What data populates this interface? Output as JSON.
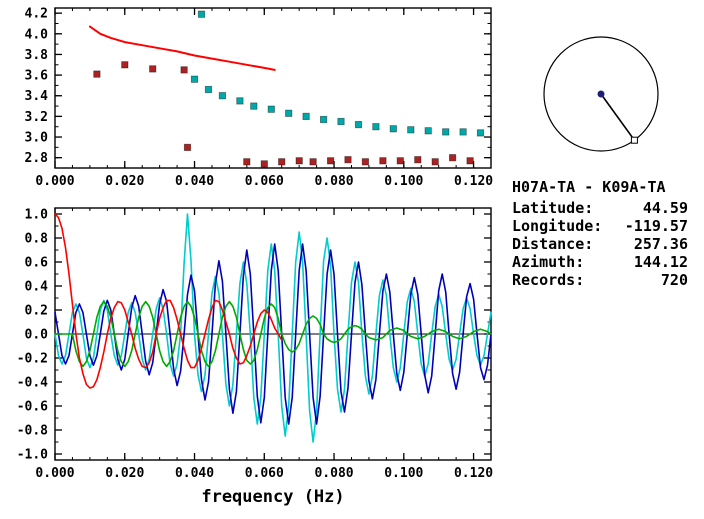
{
  "colors": {
    "background": "#ffffff",
    "frame": "#000000",
    "reference_red": "#ff0000",
    "marker_teal": "#00a8a8",
    "marker_dark_red": "#aa2222",
    "trace_blue": "#0000bb",
    "trace_cyan": "#00cccc",
    "trace_green": "#00aa00",
    "trace_red": "#ff0000",
    "center_dot_navy": "#202070",
    "text": "#000000"
  },
  "station_info": {
    "title": "H07A-TA - K09A-TA",
    "rows": [
      {
        "label": "Latitude:",
        "value": "44.59"
      },
      {
        "label": "Longitude:",
        "value": "-119.57"
      },
      {
        "label": "Distance:",
        "value": "257.36"
      },
      {
        "label": "Azimuth:",
        "value": "144.12"
      },
      {
        "label": "Records:",
        "value": "720"
      }
    ]
  },
  "azimuth_indicator": {
    "azimuth_deg": 144.12
  },
  "chart_data": [
    {
      "id": "dispersion",
      "type": "scatter",
      "title": "",
      "xlabel": "",
      "ylabel": "",
      "xlim": [
        0,
        0.125
      ],
      "ylim": [
        2.7,
        4.25
      ],
      "xticks": [
        0,
        0.02,
        0.04,
        0.06,
        0.08,
        0.1,
        0.12
      ],
      "xtick_labels": [
        "0.000",
        "0.020",
        "0.040",
        "0.060",
        "0.080",
        "0.100",
        "0.120"
      ],
      "yticks": [
        2.8,
        3.0,
        3.2,
        3.4,
        3.6,
        3.8,
        4.0,
        4.2
      ],
      "ytick_labels": [
        "2.8",
        "3.0",
        "3.2",
        "3.4",
        "3.6",
        "3.8",
        "4.0",
        "4.2"
      ],
      "grid": false,
      "legend": "none",
      "series": [
        {
          "name": "reference-dispersion-curve",
          "type": "line",
          "color": "#ff0000",
          "width": 2,
          "points": [
            [
              0.01,
              4.07
            ],
            [
              0.013,
              4.0
            ],
            [
              0.016,
              3.96
            ],
            [
              0.02,
              3.92
            ],
            [
              0.025,
              3.89
            ],
            [
              0.03,
              3.86
            ],
            [
              0.035,
              3.83
            ],
            [
              0.04,
              3.79
            ],
            [
              0.045,
              3.76
            ],
            [
              0.05,
              3.73
            ],
            [
              0.055,
              3.7
            ],
            [
              0.06,
              3.67
            ],
            [
              0.063,
              3.65
            ]
          ]
        },
        {
          "name": "group-velocity-picks",
          "type": "scatter",
          "marker": "square",
          "color": "#00a8a8",
          "points": [
            [
              0.042,
              4.19
            ],
            [
              0.04,
              3.56
            ],
            [
              0.044,
              3.46
            ],
            [
              0.048,
              3.4
            ],
            [
              0.053,
              3.35
            ],
            [
              0.057,
              3.3
            ],
            [
              0.062,
              3.27
            ],
            [
              0.067,
              3.23
            ],
            [
              0.072,
              3.2
            ],
            [
              0.077,
              3.17
            ],
            [
              0.082,
              3.15
            ],
            [
              0.087,
              3.12
            ],
            [
              0.092,
              3.1
            ],
            [
              0.097,
              3.08
            ],
            [
              0.102,
              3.07
            ],
            [
              0.107,
              3.06
            ],
            [
              0.112,
              3.05
            ],
            [
              0.117,
              3.05
            ],
            [
              0.122,
              3.04
            ]
          ]
        },
        {
          "name": "secondary-picks",
          "type": "scatter",
          "marker": "square",
          "color": "#aa2222",
          "points": [
            [
              0.012,
              3.61
            ],
            [
              0.02,
              3.7
            ],
            [
              0.028,
              3.66
            ],
            [
              0.037,
              3.65
            ],
            [
              0.038,
              2.9
            ],
            [
              0.055,
              2.76
            ],
            [
              0.06,
              2.74
            ],
            [
              0.065,
              2.76
            ],
            [
              0.07,
              2.77
            ],
            [
              0.074,
              2.76
            ],
            [
              0.079,
              2.77
            ],
            [
              0.084,
              2.78
            ],
            [
              0.089,
              2.76
            ],
            [
              0.094,
              2.77
            ],
            [
              0.099,
              2.77
            ],
            [
              0.104,
              2.78
            ],
            [
              0.109,
              2.76
            ],
            [
              0.114,
              2.8
            ],
            [
              0.119,
              2.77
            ]
          ]
        }
      ]
    },
    {
      "id": "waveforms",
      "type": "line",
      "title": "",
      "xlabel": "frequency (Hz)",
      "ylabel": "",
      "xlim": [
        0,
        0.125
      ],
      "ylim": [
        -1.05,
        1.05
      ],
      "xticks": [
        0,
        0.02,
        0.04,
        0.06,
        0.08,
        0.1,
        0.12
      ],
      "xtick_labels": [
        "0.000",
        "0.020",
        "0.040",
        "0.060",
        "0.080",
        "0.100",
        "0.120"
      ],
      "yticks": [
        1.0,
        0.8,
        0.6,
        0.4,
        0.2,
        0.0,
        -0.2,
        -0.4,
        -0.6,
        -0.8,
        -1.0
      ],
      "ytick_labels": [
        "1.0",
        "0.8",
        "0.6",
        "0.4",
        "0.2",
        "0.0",
        "-0.2",
        "-0.4",
        "-0.6",
        "-0.8",
        "-1.0"
      ],
      "zero_line": true,
      "grid": false,
      "legend": "none",
      "series": [
        {
          "name": "trace-cyan",
          "type": "line",
          "color": "#00cccc",
          "width": 1.6,
          "x0": 0,
          "dx": 0.001,
          "y": [
            0,
            -0.18,
            -0.25,
            -0.18,
            0,
            0.18,
            0.25,
            0.18,
            0,
            -0.2,
            -0.28,
            -0.2,
            0,
            0.2,
            0.28,
            0.2,
            0,
            -0.18,
            -0.26,
            -0.18,
            0,
            0.18,
            0.26,
            0.18,
            0,
            -0.21,
            -0.3,
            -0.21,
            0,
            0.21,
            0.3,
            0.21,
            0,
            -0.25,
            -0.35,
            -0.25,
            0,
            0.59,
            1.0,
            0.61,
            0,
            -0.34,
            -0.48,
            -0.34,
            0,
            0.34,
            0.48,
            0.34,
            0,
            -0.42,
            -0.6,
            -0.42,
            0,
            0.42,
            0.6,
            0.42,
            0,
            -0.53,
            -0.75,
            -0.53,
            0,
            0.53,
            0.75,
            0.53,
            0,
            -0.6,
            -0.85,
            -0.6,
            0,
            0.6,
            0.85,
            0.6,
            0,
            -0.64,
            -0.9,
            -0.64,
            0,
            0.61,
            0.8,
            0.57,
            0,
            -0.46,
            -0.65,
            -0.46,
            0,
            0.43,
            0.6,
            0.43,
            0,
            -0.35,
            -0.5,
            -0.35,
            0,
            0.32,
            0.45,
            0.32,
            0,
            -0.28,
            -0.4,
            -0.28,
            0,
            0.27,
            0.38,
            0.27,
            0,
            -0.25,
            -0.35,
            -0.25,
            0,
            0.23,
            0.33,
            0.23,
            0,
            -0.21,
            -0.3,
            -0.21,
            0,
            0.21,
            0.3,
            0.21,
            0,
            -0.18,
            -0.26,
            -0.18,
            0,
            0.18
          ]
        },
        {
          "name": "trace-blue",
          "type": "line",
          "color": "#0000bb",
          "width": 1.6,
          "x0": 0,
          "dx": 0.001,
          "y": [
            0.18,
            0,
            -0.18,
            -0.25,
            -0.18,
            0,
            0.18,
            0.25,
            0.18,
            0,
            -0.18,
            -0.26,
            -0.18,
            0,
            0.19,
            0.28,
            0.2,
            0,
            -0.21,
            -0.3,
            -0.21,
            0,
            0.22,
            0.32,
            0.23,
            0,
            -0.23,
            -0.34,
            -0.24,
            0,
            0.25,
            0.37,
            0.27,
            0,
            -0.29,
            -0.43,
            -0.31,
            0,
            0.33,
            0.49,
            0.36,
            0,
            -0.38,
            -0.55,
            -0.4,
            0,
            0.42,
            0.61,
            0.44,
            0,
            -0.46,
            -0.66,
            -0.48,
            0,
            0.49,
            0.7,
            0.5,
            0,
            -0.52,
            -0.74,
            -0.53,
            0,
            0.53,
            0.75,
            0.53,
            0,
            -0.53,
            -0.75,
            -0.53,
            0,
            0.53,
            0.75,
            0.53,
            0,
            -0.53,
            -0.75,
            -0.52,
            0,
            0.5,
            0.7,
            0.5,
            0,
            -0.48,
            -0.65,
            -0.45,
            0,
            0.43,
            0.6,
            0.41,
            0,
            -0.39,
            -0.54,
            -0.38,
            0,
            0.36,
            0.5,
            0.35,
            0,
            -0.33,
            -0.47,
            -0.32,
            0,
            0.33,
            0.47,
            0.33,
            0,
            -0.34,
            -0.49,
            -0.35,
            0,
            0.36,
            0.5,
            0.35,
            0,
            -0.33,
            -0.46,
            -0.32,
            0,
            0.31,
            0.42,
            0.29,
            0,
            -0.28,
            -0.38,
            -0.26,
            0
          ]
        },
        {
          "name": "trace-green",
          "type": "line",
          "color": "#00aa00",
          "width": 1.6,
          "x0": 0,
          "dx": 0.001,
          "y": [
            0,
            0,
            0,
            0,
            0,
            0,
            -0.14,
            -0.23,
            -0.27,
            -0.23,
            -0.14,
            0,
            0.14,
            0.23,
            0.27,
            0.23,
            0.14,
            0,
            -0.14,
            -0.23,
            -0.27,
            -0.23,
            -0.14,
            0,
            0.14,
            0.23,
            0.27,
            0.23,
            0.14,
            0,
            -0.14,
            -0.23,
            -0.27,
            -0.23,
            -0.14,
            0,
            0.14,
            0.23,
            0.27,
            0.23,
            0.14,
            0,
            -0.14,
            -0.23,
            -0.27,
            -0.23,
            -0.14,
            0,
            0.14,
            0.23,
            0.27,
            0.23,
            0.14,
            0,
            -0.13,
            -0.22,
            -0.25,
            -0.22,
            -0.13,
            0,
            0.13,
            0.22,
            0.25,
            0.22,
            0.13,
            0,
            -0.08,
            -0.13,
            -0.15,
            -0.13,
            -0.08,
            0,
            0.08,
            0.13,
            0.15,
            0.13,
            0.08,
            0,
            -0.04,
            -0.06,
            -0.07,
            -0.06,
            -0.04,
            0,
            0.04,
            0.06,
            0.07,
            0.06,
            0.04,
            0,
            -0.03,
            -0.04,
            -0.05,
            -0.04,
            -0.03,
            0,
            0.03,
            0.04,
            0.05,
            0.04,
            0.03,
            0,
            -0.02,
            -0.03,
            -0.04,
            -0.03,
            -0.02,
            0,
            0.02,
            0.03,
            0.04,
            0.03,
            0.02,
            0,
            -0.02,
            -0.03,
            -0.04,
            -0.03,
            -0.02,
            0,
            0.02,
            0.03,
            0.04,
            0.03,
            0.02,
            0
          ]
        },
        {
          "name": "trace-red",
          "type": "line",
          "color": "#ff0000",
          "width": 1.6,
          "x0": 0,
          "dx": 0.001,
          "y": [
            1.0,
            0.97,
            0.88,
            0.72,
            0.5,
            0.25,
            0,
            -0.2,
            -0.33,
            -0.42,
            -0.45,
            -0.44,
            -0.38,
            -0.28,
            -0.15,
            0,
            0.13,
            0.22,
            0.27,
            0.26,
            0.2,
            0.1,
            0,
            -0.12,
            -0.21,
            -0.27,
            -0.28,
            -0.24,
            -0.15,
            0,
            0.13,
            0.22,
            0.28,
            0.28,
            0.22,
            0.12,
            0,
            -0.12,
            -0.22,
            -0.28,
            -0.28,
            -0.22,
            -0.12,
            0,
            0.12,
            0.22,
            0.28,
            0.27,
            0.2,
            0.1,
            0,
            -0.12,
            -0.2,
            -0.25,
            -0.24,
            -0.18,
            -0.1,
            0,
            0.1,
            0.17,
            0.2,
            0.18,
            0.12,
            0.05,
            0,
            -0.05
          ]
        }
      ]
    }
  ]
}
